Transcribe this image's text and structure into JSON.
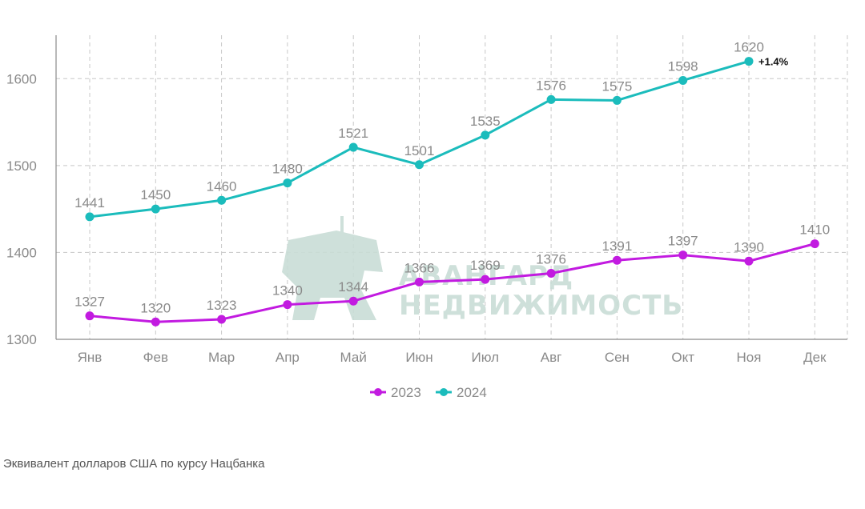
{
  "chart_data": {
    "type": "line",
    "categories": [
      "Янв",
      "Фев",
      "Мар",
      "Апр",
      "Май",
      "Июн",
      "Июл",
      "Авг",
      "Сен",
      "Окт",
      "Ноя",
      "Дек"
    ],
    "series": [
      {
        "name": "2023",
        "color": "#c21be0",
        "values": [
          1327,
          1320,
          1323,
          1340,
          1344,
          1366,
          1369,
          1376,
          1391,
          1397,
          1390,
          1410
        ]
      },
      {
        "name": "2024",
        "color": "#1bbcbc",
        "values": [
          1441,
          1450,
          1460,
          1480,
          1521,
          1501,
          1535,
          1576,
          1575,
          1598,
          1620,
          null
        ]
      }
    ],
    "yticks": [
      1300,
      1400,
      1500,
      1600
    ],
    "ylim": [
      1300,
      1650
    ],
    "grid": true,
    "legend": "bottom-center",
    "annotation": {
      "text": "+1.4%",
      "series": "2024",
      "category": "Ноя"
    }
  },
  "watermark": {
    "line1": "АВАНГАРД",
    "line2": "НЕДВИЖИМОСТЬ"
  },
  "footnote": "Эквивалент долларов США по курсу Нацбанка"
}
